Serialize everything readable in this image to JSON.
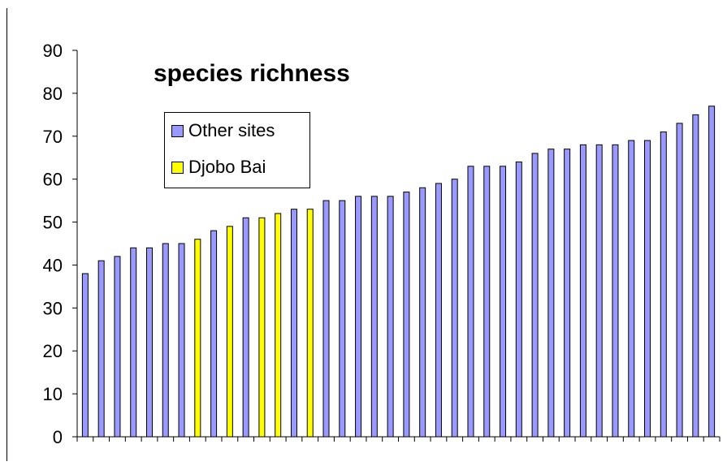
{
  "chart_data": {
    "type": "bar",
    "title": "species richness",
    "xlabel": "",
    "ylabel": "",
    "ylim": [
      0,
      90
    ],
    "yticks": [
      0,
      10,
      20,
      30,
      40,
      50,
      60,
      70,
      80,
      90
    ],
    "grid": false,
    "legend_placement": "top-left",
    "series": [
      {
        "name": "Other sites",
        "color": "#9999ff"
      },
      {
        "name": "Djobo Bai",
        "color": "#ffff00"
      }
    ],
    "values": [
      38,
      41,
      42,
      44,
      44,
      45,
      45,
      46,
      48,
      49,
      51,
      51,
      52,
      53,
      53,
      55,
      55,
      56,
      56,
      56,
      57,
      58,
      59,
      60,
      63,
      63,
      63,
      64,
      66,
      67,
      67,
      68,
      68,
      68,
      69,
      69,
      71,
      73,
      75,
      77
    ],
    "bar_series": [
      0,
      0,
      0,
      0,
      0,
      0,
      0,
      1,
      0,
      1,
      0,
      1,
      1,
      0,
      1,
      0,
      0,
      0,
      0,
      0,
      0,
      0,
      0,
      0,
      0,
      0,
      0,
      0,
      0,
      0,
      0,
      0,
      0,
      0,
      0,
      0,
      0,
      0,
      0,
      0
    ]
  }
}
